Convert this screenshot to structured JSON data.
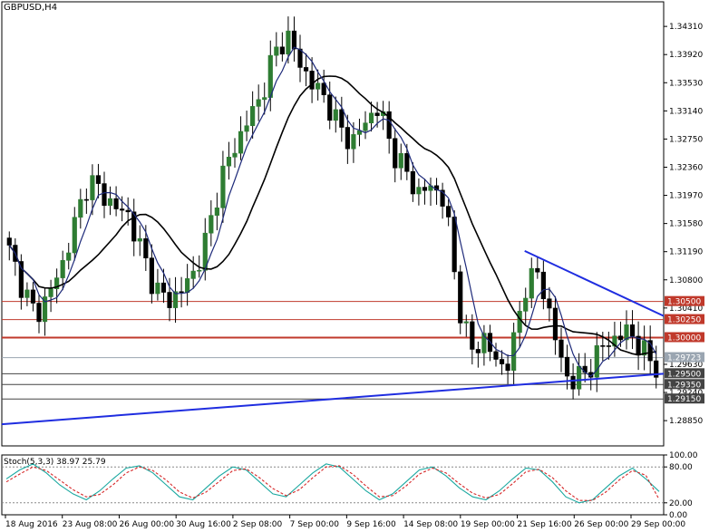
{
  "chart_data": [
    {
      "type": "candlestick",
      "title": "GBPUSD,H4",
      "ylim": [
        1.285,
        1.345
      ],
      "y_ticks": [
        "1.34310",
        "1.33920",
        "1.33530",
        "1.33140",
        "1.32750",
        "1.32360",
        "1.31970",
        "1.31580",
        "1.31190",
        "1.30800",
        "1.30410",
        "1.29630",
        "1.29240",
        "1.28850"
      ],
      "x_tick_labels": [
        "18 Aug 2016",
        "23 Aug 08:00",
        "26 Aug 00:00",
        "30 Aug 16:00",
        "2 Sep 08:00",
        "7 Sep 00:00",
        "9 Sep 16:00",
        "14 Sep 08:00",
        "19 Sep 00:00",
        "21 Sep 16:00",
        "26 Sep 00:00",
        "29 Sep 00:00"
      ],
      "approx_close_path": [
        1.312,
        1.307,
        1.303,
        1.306,
        1.31,
        1.316,
        1.322,
        1.32,
        1.318,
        1.317,
        1.312,
        1.307,
        1.305,
        1.3065,
        1.309,
        1.314,
        1.322,
        1.326,
        1.33,
        1.333,
        1.339,
        1.342,
        1.338,
        1.335,
        1.333,
        1.329,
        1.327,
        1.33,
        1.332,
        1.326,
        1.323,
        1.32,
        1.321,
        1.319,
        1.305,
        1.298,
        1.3,
        1.296,
        1.297,
        1.307,
        1.309,
        1.303,
        1.295,
        1.294,
        1.296,
        1.299,
        1.3,
        1.301,
        1.298,
        1.296
      ],
      "horizontal_levels": [
        {
          "value": 1.305,
          "label": "1.30500",
          "color": "#c0392b"
        },
        {
          "value": 1.3025,
          "label": "1.30250",
          "color": "#c0392b"
        },
        {
          "value": 1.3,
          "label": "1.30000",
          "color": "#c0392b"
        },
        {
          "value": 1.29723,
          "label": "1.29723",
          "color": "#9aa5b1"
        },
        {
          "value": 1.295,
          "label": "1.29500",
          "color": "#444444"
        },
        {
          "value": 1.2935,
          "label": "1.29350",
          "color": "#444444"
        },
        {
          "value": 1.2915,
          "label": "1.29150",
          "color": "#444444"
        }
      ],
      "trendlines": [
        {
          "name": "support",
          "from": [
            0,
            1.288
          ],
          "to": [
            1,
            1.295
          ],
          "color": "#1f2de0"
        },
        {
          "name": "resistance",
          "from": [
            0.79,
            1.312
          ],
          "to": [
            1,
            1.303
          ],
          "color": "#1f2de0"
        }
      ],
      "moving_averages": [
        {
          "color": "#000000"
        },
        {
          "color": "#1e2a7a"
        }
      ],
      "colors": {
        "bull": "#2e7d32",
        "bear": "#000000",
        "grid": "#d8d8d8"
      }
    },
    {
      "type": "line",
      "title": "Stoch(5,3,3) 38.97 25.79",
      "ylim": [
        0,
        100
      ],
      "y_ticks": [
        "100.00",
        "80.00",
        "20.00",
        "0.00"
      ],
      "levels": [
        80,
        20
      ],
      "series": [
        {
          "values": [
            60,
            75,
            85,
            70,
            50,
            35,
            25,
            40,
            60,
            78,
            82,
            70,
            50,
            30,
            25,
            45,
            65,
            80,
            75,
            55,
            35,
            30,
            50,
            70,
            85,
            80,
            60,
            40,
            25,
            35,
            55,
            75,
            80,
            65,
            45,
            30,
            25,
            40,
            60,
            78,
            75,
            55,
            30,
            20,
            25,
            45,
            65,
            78,
            60,
            38.97
          ],
          "color": "#1aa8a0"
        },
        {
          "values": [
            55,
            68,
            80,
            74,
            58,
            42,
            30,
            34,
            50,
            70,
            80,
            74,
            58,
            38,
            28,
            38,
            56,
            74,
            77,
            62,
            44,
            32,
            42,
            62,
            80,
            82,
            68,
            48,
            30,
            32,
            48,
            68,
            78,
            70,
            52,
            36,
            28,
            34,
            52,
            72,
            76,
            62,
            40,
            24,
            24,
            38,
            58,
            74,
            66,
            25.79
          ],
          "color": "#d62728"
        }
      ]
    }
  ]
}
